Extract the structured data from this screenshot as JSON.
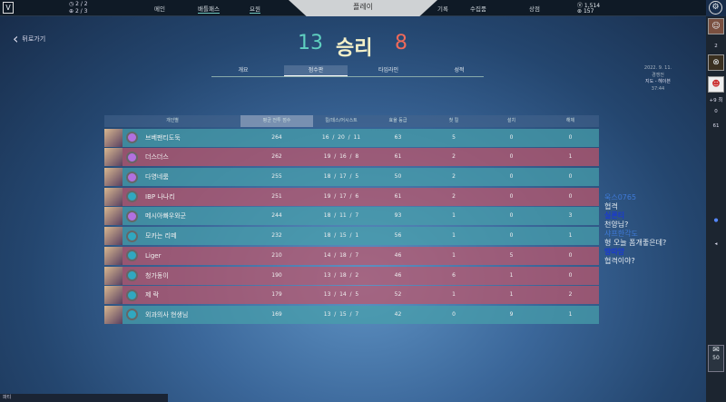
{
  "topbar": {
    "counter1": "2 / 2",
    "counter2": "2 / 3",
    "nav": [
      "메인",
      "배틀패스",
      "요원",
      "기록",
      "수집품",
      "상점"
    ],
    "play": "플레이",
    "vp": "1,514",
    "rp": "157"
  },
  "back": "뒤로가기",
  "result": {
    "team_score": "13",
    "label": "승리",
    "enemy_score": "8"
  },
  "tabs": [
    "개요",
    "점수판",
    "타임라인",
    "성적"
  ],
  "meta": {
    "date": "2022. 9. 11.",
    "mode": "경쟁전",
    "map": "지도 - 헤이븐",
    "time": "37:44"
  },
  "columns": [
    "개인별",
    "평균 전투 점수",
    "킬/데스/어시스트",
    "효율 등급",
    "첫 킬",
    "설치",
    "해체"
  ],
  "rows": [
    {
      "team": "win",
      "name": "브베팬티도둑",
      "acs": "264",
      "k": "16",
      "d": "20",
      "a": "11",
      "eff": "63",
      "fk": "5",
      "plant": "0",
      "defuse": "0"
    },
    {
      "team": "loss",
      "name": "더스더스",
      "acs": "262",
      "k": "19",
      "d": "16",
      "a": "8",
      "eff": "61",
      "fk": "2",
      "plant": "0",
      "defuse": "1"
    },
    {
      "team": "win",
      "name": "다영네룸",
      "acs": "255",
      "k": "18",
      "d": "17",
      "a": "5",
      "eff": "50",
      "fk": "2",
      "plant": "0",
      "defuse": "0"
    },
    {
      "team": "loss",
      "name": "IBP 나나리",
      "acs": "251",
      "k": "19",
      "d": "17",
      "a": "6",
      "eff": "61",
      "fk": "2",
      "plant": "0",
      "defuse": "0"
    },
    {
      "team": "win",
      "name": "메시아빠우와군",
      "acs": "244",
      "k": "18",
      "d": "11",
      "a": "7",
      "eff": "93",
      "fk": "1",
      "plant": "0",
      "defuse": "3"
    },
    {
      "team": "win",
      "name": "모카는 리떼",
      "acs": "232",
      "k": "18",
      "d": "15",
      "a": "1",
      "eff": "56",
      "fk": "1",
      "plant": "0",
      "defuse": "1"
    },
    {
      "team": "loss",
      "name": "Liger",
      "acs": "210",
      "k": "14",
      "d": "18",
      "a": "7",
      "eff": "46",
      "fk": "1",
      "plant": "5",
      "defuse": "0"
    },
    {
      "team": "loss",
      "name": "청가동이",
      "acs": "190",
      "k": "13",
      "d": "18",
      "a": "2",
      "eff": "46",
      "fk": "6",
      "plant": "1",
      "defuse": "0"
    },
    {
      "team": "loss",
      "name": "제 락",
      "acs": "179",
      "k": "13",
      "d": "14",
      "a": "5",
      "eff": "52",
      "fk": "1",
      "plant": "1",
      "defuse": "2"
    },
    {
      "team": "win",
      "name": "외과의사 현생님",
      "acs": "169",
      "k": "13",
      "d": "15",
      "a": "7",
      "eff": "42",
      "fk": "0",
      "plant": "9",
      "defuse": "1"
    }
  ],
  "chat": [
    {
      "user": "욱스0765",
      "msg": "협격",
      "faded": true
    },
    {
      "user": "실론티",
      "msg": "천양님?",
      "faded": false
    },
    {
      "user": "샤프한각도",
      "msg": "형 오늘 폼개좋은데?",
      "faded": true
    },
    {
      "user": "땅따앙",
      "msg": "협격이야?",
      "faded": false
    }
  ],
  "rightbar": {
    "count1": "2",
    "party": "+9 최",
    "count2": "0",
    "count3": "61",
    "mail": "50"
  },
  "party_label": "파티"
}
